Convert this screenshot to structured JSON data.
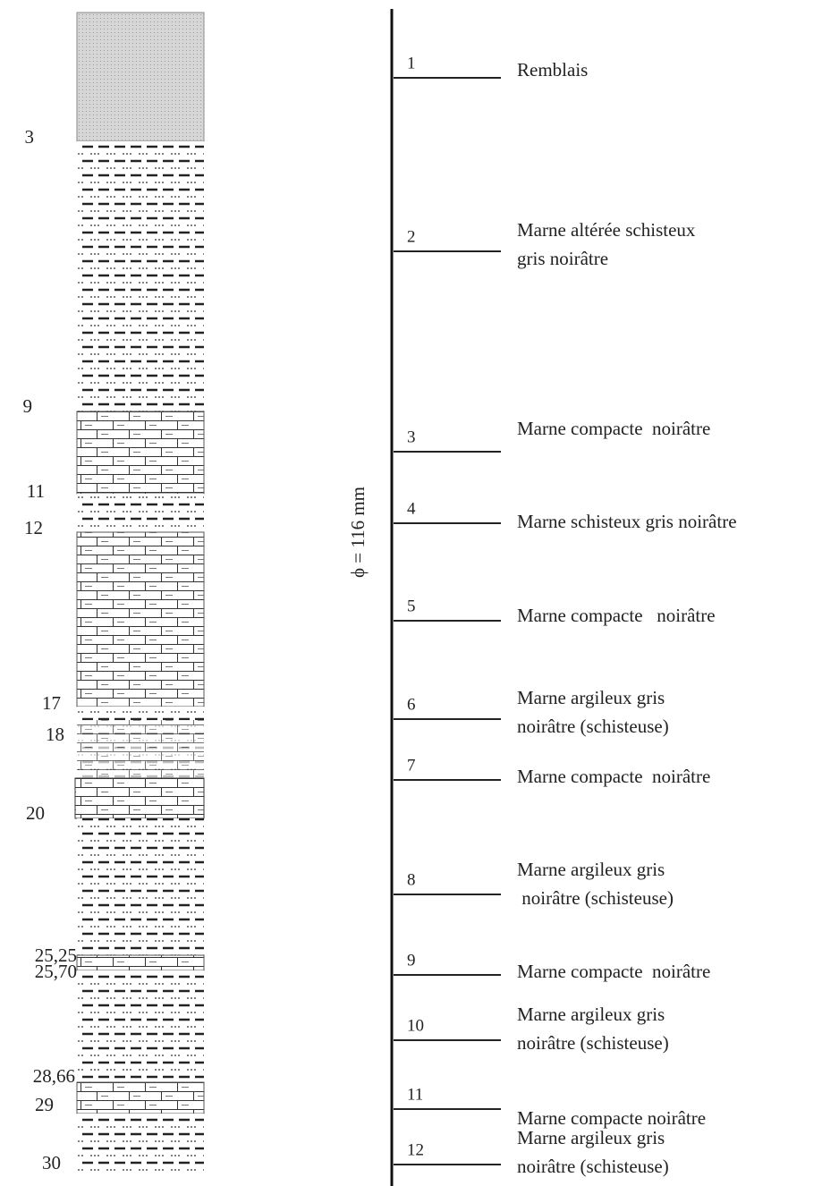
{
  "depths": [
    "3",
    "9",
    "11",
    "12",
    "17",
    "18",
    "20",
    "25,25",
    "25,70",
    "28,66",
    "29",
    "30"
  ],
  "diameter": "ϕ = 116 mm",
  "layers": [
    {
      "number": "1",
      "description": [
        "Remblais"
      ]
    },
    {
      "number": "2",
      "description": [
        "Marne altérée schisteux",
        "gris noirâtre"
      ]
    },
    {
      "number": "3",
      "description": [
        "Marne compacte  noirâtre"
      ]
    },
    {
      "number": "4",
      "description": [
        "Marne schisteux gris noirâtre"
      ]
    },
    {
      "number": "5",
      "description": [
        "Marne compacte   noirâtre"
      ]
    },
    {
      "number": "6",
      "description": [
        "Marne argileux gris",
        "noirâtre (schisteuse)"
      ]
    },
    {
      "number": "7",
      "description": [
        "Marne compacte  noirâtre"
      ]
    },
    {
      "number": "8",
      "description": [
        "Marne argileux gris",
        " noirâtre (schisteuse)"
      ]
    },
    {
      "number": "9",
      "description": [
        "Marne compacte  noirâtre"
      ]
    },
    {
      "number": "10",
      "description": [
        "Marne argileux gris",
        "noirâtre (schisteuse)"
      ]
    },
    {
      "number": "11",
      "description": [
        "Marne compacte noirâtre"
      ]
    },
    {
      "number": "12",
      "description": [
        "Marne argileux gris",
        "noirâtre (schisteuse)"
      ]
    }
  ]
}
